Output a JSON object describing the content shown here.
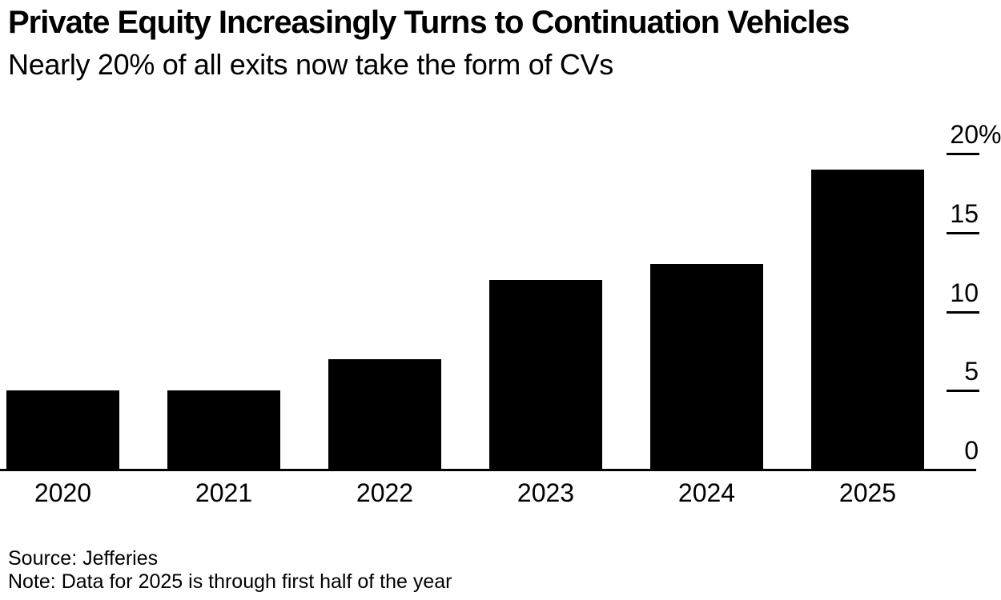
{
  "header": {
    "title": "Private Equity Increasingly Turns to Continuation Vehicles",
    "subtitle": "Nearly 20% of all exits now take the form of CVs"
  },
  "chart_data": {
    "type": "bar",
    "title": "Private Equity Increasingly Turns to Continuation Vehicles",
    "subtitle": "Nearly 20% of all exits now take the form of CVs",
    "categories": [
      "2020",
      "2021",
      "2022",
      "2023",
      "2024",
      "2025"
    ],
    "values": [
      5,
      5,
      7,
      12,
      13,
      19
    ],
    "unit": "%",
    "xlabel": "",
    "ylabel": "",
    "ylim": [
      0,
      20
    ],
    "yticks": [
      {
        "value": 20,
        "label": "20%"
      },
      {
        "value": 15,
        "label": "15"
      },
      {
        "value": 10,
        "label": "10"
      },
      {
        "value": 5,
        "label": "5"
      },
      {
        "value": 0,
        "label": "0"
      }
    ],
    "axis_side": "right",
    "grid": false,
    "legend": "none",
    "bar_color": "#000000"
  },
  "footer": {
    "source": "Source: Jefferies",
    "note": "Note: Data for 2025 is through first half of the year"
  },
  "colors": {
    "background": "#ffffff",
    "text": "#000000",
    "bar": "#000000",
    "axis": "#000000"
  }
}
